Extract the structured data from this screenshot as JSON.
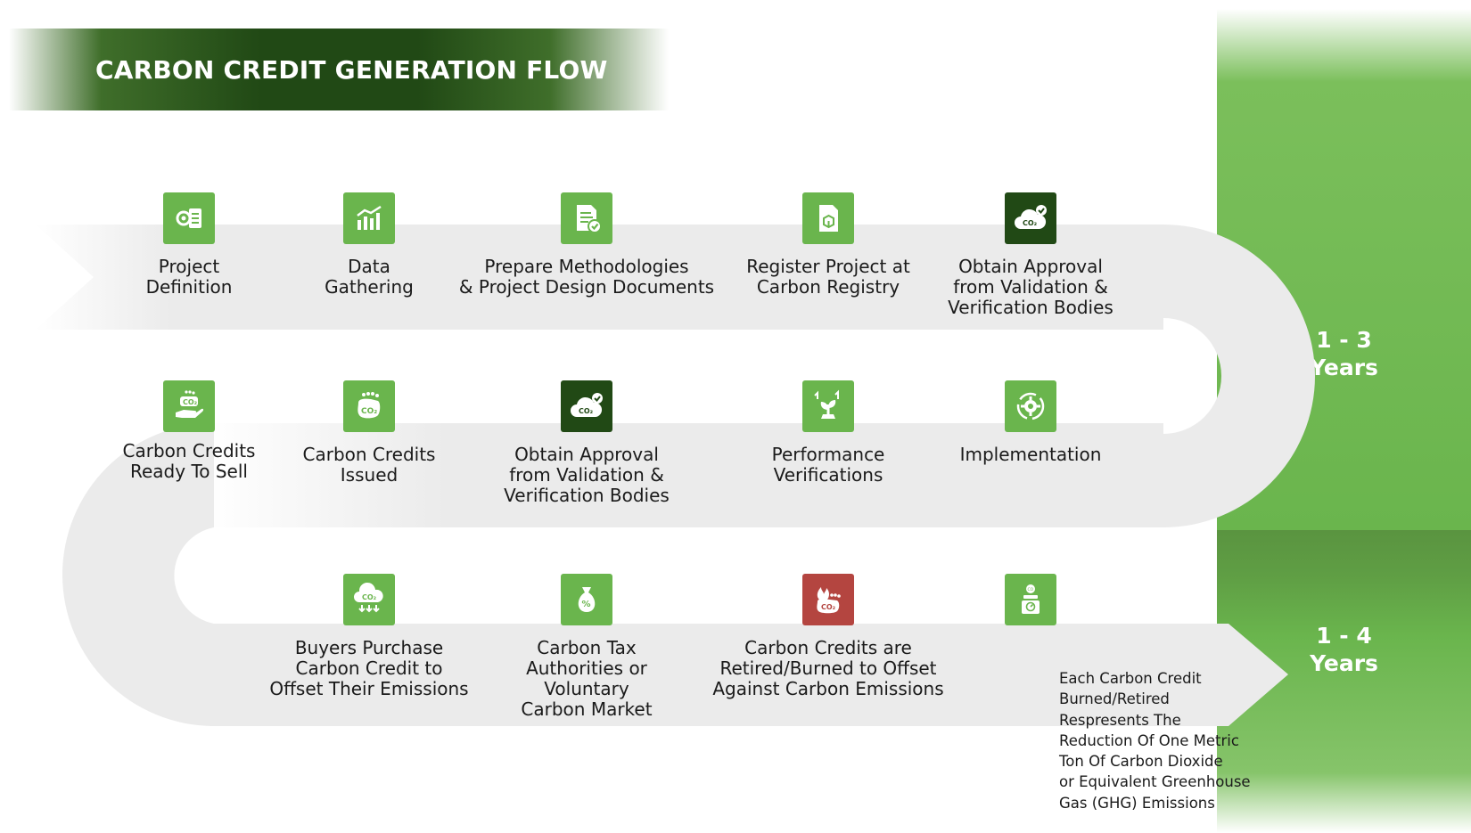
{
  "title": "CARBON CREDIT GENERATION FLOW",
  "colors": {
    "accent_green": "#6ab54d",
    "dark_green": "#214915",
    "alert_red": "#b44540",
    "path_grey": "#ebebeb"
  },
  "durations": {
    "first": {
      "value": "1 - 3",
      "unit": "Years"
    },
    "second": {
      "value": "1 - 4",
      "unit": "Years"
    }
  },
  "steps": [
    {
      "label": "Project\nDefinition",
      "icon": "project-definition-icon",
      "color": "green"
    },
    {
      "label": "Data\nGathering",
      "icon": "bar-chart-icon",
      "color": "green"
    },
    {
      "label": "Prepare Methodologies\n& Project Design Documents",
      "icon": "document-check-icon",
      "color": "green"
    },
    {
      "label": "Register Project at\nCarbon Registry",
      "icon": "register-document-icon",
      "color": "green"
    },
    {
      "label": "Obtain Approval\nfrom Validation &\nVerification Bodies",
      "icon": "co2-cloud-check-icon",
      "color": "dark"
    },
    {
      "label": "Implementation",
      "icon": "gear-cycle-icon",
      "color": "green"
    },
    {
      "label": "Performance\nVerifications",
      "icon": "plant-growth-icon",
      "color": "green"
    },
    {
      "label": "Obtain Approval\nfrom Validation &\nVerification Bodies",
      "icon": "co2-cloud-check-icon",
      "color": "dark"
    },
    {
      "label": "Carbon Credits\nIssued",
      "icon": "co2-footprint-icon",
      "color": "green"
    },
    {
      "label": "Carbon Credits\n  Ready To Sell",
      "icon": "co2-hand-icon",
      "color": "green"
    },
    {
      "label": "Buyers Purchase\nCarbon Credit to\nOffset Their Emissions",
      "icon": "co2-cloud-down-icon",
      "color": "green"
    },
    {
      "label": "Carbon Tax\nAuthorities or\nVoluntary\nCarbon Market",
      "icon": "money-bag-icon",
      "color": "green"
    },
    {
      "label": "Carbon Credits are\nRetired/Burned to Offset\nAgainst Carbon Emissions",
      "icon": "co2-fire-icon",
      "color": "red"
    },
    {
      "label": "",
      "icon": "co2-meter-icon",
      "color": "green"
    }
  ],
  "note": "Each Carbon Credit\nBurned/Retired\nRespresents The\nReduction Of One Metric\nTon Of Carbon Dioxide\nor Equivalent Greenhouse\nGas (GHG) Emissions"
}
